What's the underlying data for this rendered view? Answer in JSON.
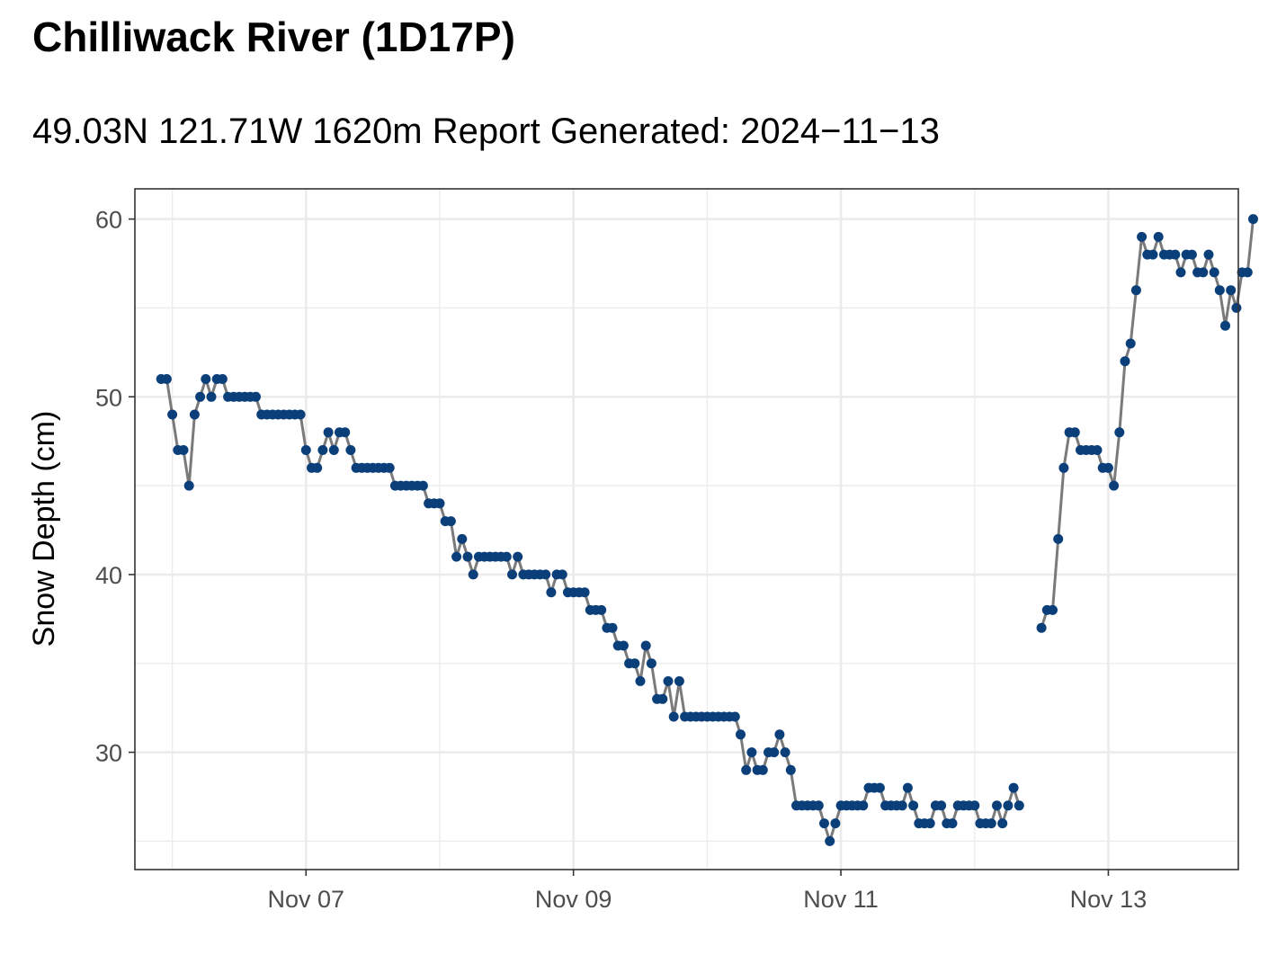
{
  "title": "Chilliwack River (1D17P)",
  "subtitle": "49.03N 121.71W 1620m Report Generated: 2024−11−13",
  "colors": {
    "line": "#7a7a7a",
    "point": "#0b3f7a",
    "grid": "#ebebeb",
    "frame": "#333333"
  },
  "chart_data": {
    "type": "line",
    "title": "Chilliwack River (1D17P)",
    "subtitle": "49.03N 121.71W 1620m Report Generated: 2024−11−13",
    "xlabel": "",
    "ylabel": "Snow Depth (cm)",
    "ylim": [
      23.4,
      61.7
    ],
    "xlim": [
      "2024-11-05T17:17",
      "2024-11-13T23:20"
    ],
    "y_ticks": [
      30,
      40,
      50,
      60
    ],
    "x_ticks": [
      {
        "label": "Nov 07",
        "date": "2024-11-07"
      },
      {
        "label": "Nov 09",
        "date": "2024-11-09"
      },
      {
        "label": "Nov 11",
        "date": "2024-11-11"
      },
      {
        "label": "Nov 13",
        "date": "2024-11-13"
      }
    ],
    "grid": true,
    "legend": "none",
    "series": [
      {
        "start": "2024-11-05T22:00",
        "step_hours": 1,
        "values": [
          51,
          51,
          49,
          47,
          47,
          45,
          49,
          50,
          51,
          50,
          51,
          51,
          50,
          50,
          50,
          50,
          50,
          50,
          49,
          49,
          49,
          49,
          49,
          49,
          49,
          49,
          47,
          46,
          46,
          47,
          48,
          47,
          48,
          48,
          47,
          46,
          46,
          46,
          46,
          46,
          46,
          46,
          45,
          45,
          45,
          45,
          45,
          45,
          44,
          44,
          44,
          43,
          43,
          41,
          42,
          41,
          40,
          41,
          41,
          41,
          41,
          41,
          41,
          40,
          41,
          40,
          40,
          40,
          40,
          40,
          39,
          40,
          40,
          39,
          39,
          39,
          39,
          38,
          38,
          38,
          37,
          37,
          36,
          36,
          35,
          35,
          34,
          36,
          35,
          33,
          33,
          34,
          32,
          34,
          32,
          32,
          32,
          32,
          32,
          32,
          32,
          32,
          32,
          32,
          31,
          29,
          30,
          29,
          29,
          30,
          30,
          31,
          30,
          29,
          27,
          27,
          27,
          27,
          27,
          26,
          25,
          26,
          27,
          27,
          27,
          27,
          27,
          28,
          28,
          28,
          27,
          27,
          27,
          27,
          28,
          27,
          26,
          26,
          26,
          27,
          27,
          26,
          26,
          27,
          27,
          27,
          27,
          26,
          26,
          26,
          27,
          26,
          27,
          28,
          27,
          null,
          null,
          null,
          37,
          38,
          38,
          42,
          46,
          48,
          48,
          47,
          47,
          47,
          47,
          46,
          46,
          45,
          48,
          52,
          53,
          56,
          59,
          58,
          58,
          59,
          58,
          58,
          58,
          57,
          58,
          58,
          57,
          57,
          58,
          57,
          56,
          54,
          56,
          55,
          57,
          57,
          60
        ]
      }
    ]
  }
}
